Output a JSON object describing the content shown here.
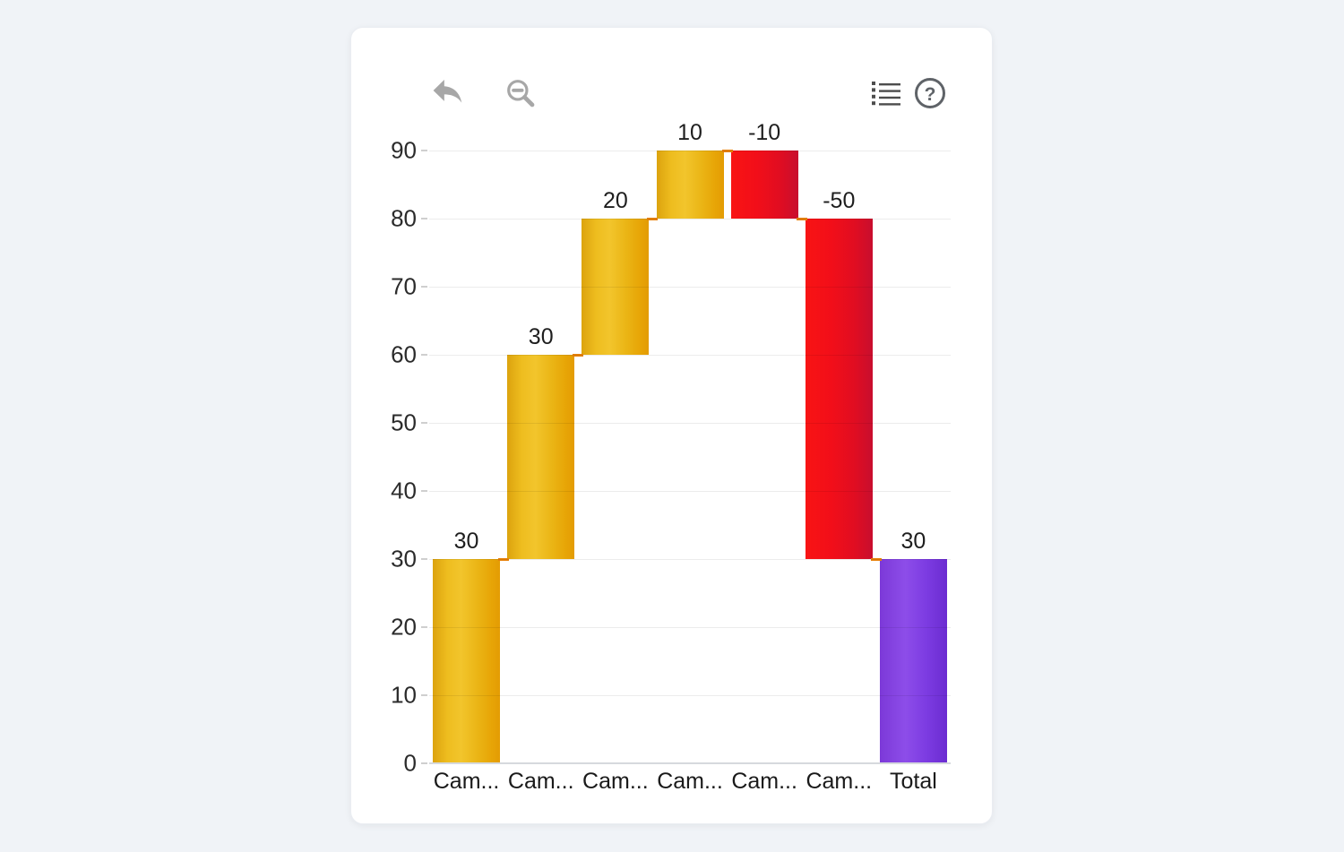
{
  "page": {
    "background_color": "#f0f3f7"
  },
  "card": {
    "background_color": "#ffffff"
  },
  "toolbar": {
    "undo_label": "undo",
    "zoom_out_label": "zoom out",
    "legend_label": "legend list",
    "help_label": "help",
    "help_glyph": "?"
  },
  "chart_data": {
    "type": "bar",
    "subtype": "waterfall",
    "title": "",
    "xlabel": "",
    "ylabel": "",
    "categories": [
      "Cam...",
      "Cam...",
      "Cam...",
      "Cam...",
      "Cam...",
      "Cam...",
      "Total"
    ],
    "values": [
      30,
      30,
      20,
      10,
      -10,
      -50,
      30
    ],
    "data_labels": [
      "30",
      "30",
      "20",
      "10",
      "-10",
      "-50",
      "30"
    ],
    "kinds": [
      "increase",
      "increase",
      "increase",
      "increase",
      "decrease",
      "decrease",
      "total"
    ],
    "ylim": [
      0,
      90
    ],
    "yticks": [
      0,
      10,
      20,
      30,
      40,
      50,
      60,
      70,
      80,
      90
    ],
    "grid": true,
    "legend_position": "none",
    "colors": {
      "increase": "#ecb615",
      "decrease": "#ed0e1e",
      "total": "#7d3be0",
      "connector": "#e8820a",
      "gridline": "#ededed",
      "axis_line": "#d6d9dd",
      "tick_label_color": "#2b2b2b",
      "data_label_color": "#1e1e1e"
    }
  }
}
